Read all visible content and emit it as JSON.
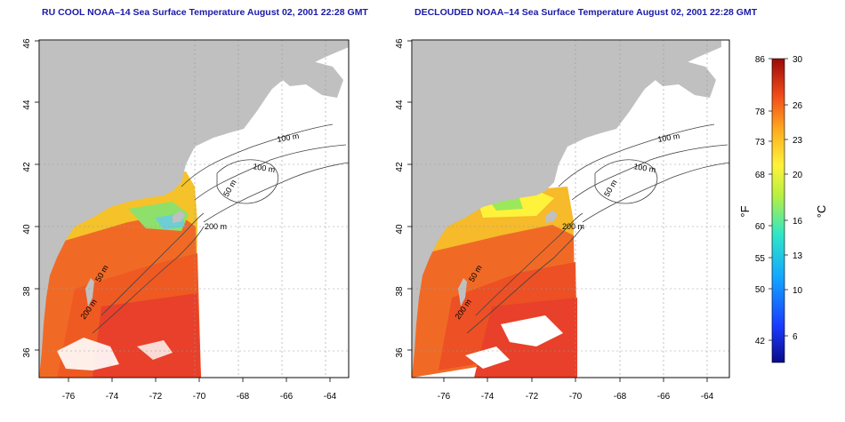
{
  "panels": [
    {
      "title": "RU COOL NOAA–14 Sea Surface Temperature August 02, 2001 22:28 GMT",
      "x_ticks": [
        "-76",
        "-74",
        "-72",
        "-70",
        "-68",
        "-66",
        "-64"
      ],
      "y_ticks": [
        "46",
        "44",
        "42",
        "40",
        "38",
        "36"
      ],
      "contour_labels": [
        "100 m",
        "100 m",
        "50 m",
        "200 m",
        "50 m",
        "200 m"
      ]
    },
    {
      "title": "DECLOUDED NOAA–14 Sea Surface Temperature August 02, 2001 22:28 GMT",
      "x_ticks": [
        "-76",
        "-74",
        "-72",
        "-70",
        "-68",
        "-66",
        "-64"
      ],
      "y_ticks": [
        "46",
        "44",
        "42",
        "40",
        "38",
        "36"
      ],
      "contour_labels": [
        "100 m",
        "100 m",
        "50 m",
        "200 m",
        "50 m",
        "200 m"
      ]
    }
  ],
  "colorbar": {
    "f_label": "°F",
    "c_label": "°C",
    "f_ticks": [
      "86",
      "78",
      "73",
      "68",
      "60",
      "55",
      "50",
      "42"
    ],
    "c_ticks": [
      "30",
      "26",
      "23",
      "20",
      "16",
      "13",
      "10",
      "6"
    ]
  },
  "colors": {
    "title": "#1a1aa8",
    "land": "#c0c0c0",
    "sst_warm": "#e8402a",
    "sst_cool": "#f5c22a"
  }
}
